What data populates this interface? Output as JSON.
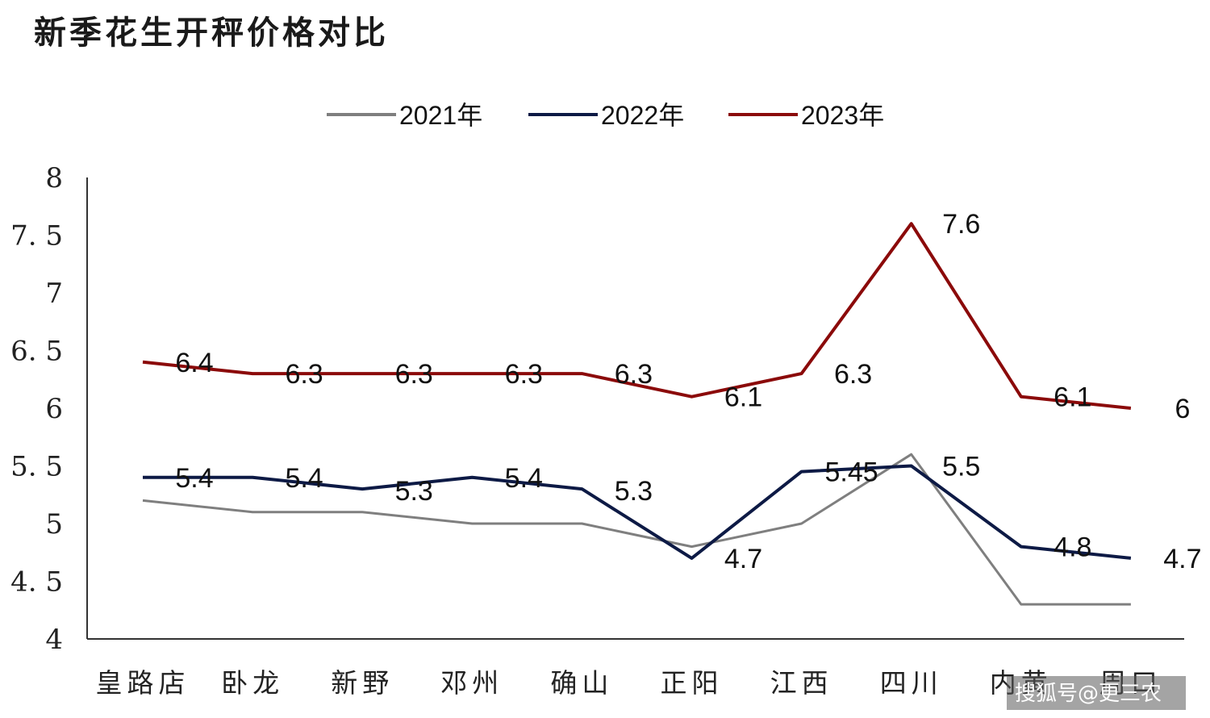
{
  "chart_data": {
    "type": "line",
    "title": "新季花生开秤价格对比",
    "categories": [
      "皇路店",
      "卧龙",
      "新野",
      "邓州",
      "确山",
      "正阳",
      "江西",
      "四川",
      "内黄",
      "周口"
    ],
    "y_ticks": [
      "4",
      "4. 5",
      "5",
      "5. 5",
      "6",
      "6. 5",
      "7",
      "7. 5",
      "8"
    ],
    "ylim": [
      4,
      8
    ],
    "legend_position": "top",
    "grid": false,
    "series": [
      {
        "name": "2021年",
        "color": "#7f7f7f",
        "values": [
          5.2,
          5.1,
          5.1,
          5.0,
          5.0,
          4.8,
          5.0,
          5.6,
          4.3,
          4.3
        ],
        "labels": []
      },
      {
        "name": "2022年",
        "color": "#0d1a45",
        "values": [
          5.4,
          5.4,
          5.3,
          5.4,
          5.3,
          4.7,
          5.45,
          5.5,
          4.8,
          4.7
        ],
        "labels": [
          "5.4",
          "5.4",
          "5.3",
          "5.4",
          "5.3",
          "4.7",
          "5.45",
          "5.5",
          "4.8",
          "4.7"
        ]
      },
      {
        "name": "2023年",
        "color": "#8b0a0a",
        "values": [
          6.4,
          6.3,
          6.3,
          6.3,
          6.3,
          6.1,
          6.3,
          7.6,
          6.1,
          6.0
        ],
        "labels": [
          "6.4",
          "6.3",
          "6.3",
          "6.3",
          "6.3",
          "6.1",
          "6.3",
          "7.6",
          "6.1",
          "6"
        ]
      }
    ]
  },
  "watermark": "搜狐号@更三农"
}
